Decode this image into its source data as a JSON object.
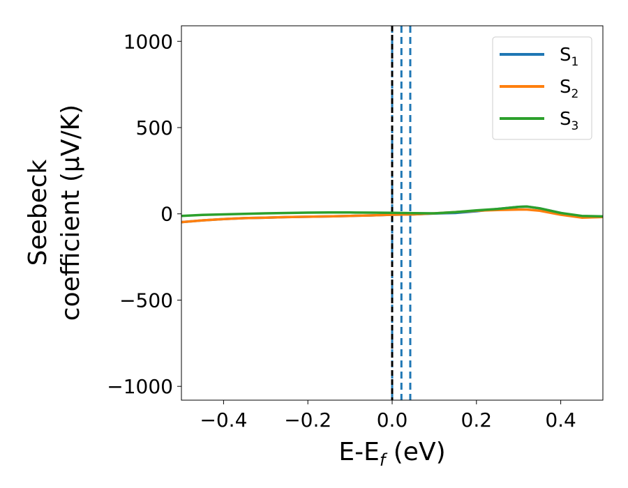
{
  "chart_data": {
    "type": "line",
    "title": "",
    "xlabel": {
      "main": "E-E",
      "subscript": "f",
      "unit": " (eV)"
    },
    "ylabel": {
      "line1": "Seebeck",
      "line2": "coefficient  (μV/K)"
    },
    "xlim": [
      -0.5,
      0.5
    ],
    "ylim": [
      -1080,
      1090
    ],
    "xticks": [
      -0.4,
      -0.2,
      0.0,
      0.2,
      0.4
    ],
    "xtick_labels": [
      "−0.4",
      "−0.2",
      "0.0",
      "0.2",
      "0.4"
    ],
    "yticks": [
      -1000,
      -500,
      0,
      500,
      1000
    ],
    "ytick_labels": [
      "−1000",
      "−500",
      "0",
      "500",
      "1000"
    ],
    "series": [
      {
        "name": "S",
        "sub": "1",
        "color": "#1f77b4",
        "x": [
          -0.5,
          -0.45,
          -0.4,
          -0.35,
          -0.3,
          -0.25,
          -0.2,
          -0.15,
          -0.1,
          -0.05,
          0.0,
          0.05,
          0.1,
          0.15,
          0.2,
          0.25,
          0.3,
          0.32,
          0.35,
          0.4,
          0.45,
          0.5
        ],
        "y": [
          -48,
          -38,
          -30,
          -25,
          -22,
          -19,
          -17,
          -15,
          -12,
          -9,
          -5,
          -3,
          2,
          5,
          15,
          28,
          40,
          42,
          32,
          5,
          -20,
          -18
        ]
      },
      {
        "name": "S",
        "sub": "2",
        "color": "#ff7f0e",
        "x": [
          -0.5,
          -0.45,
          -0.4,
          -0.35,
          -0.3,
          -0.25,
          -0.2,
          -0.15,
          -0.1,
          -0.05,
          0.0,
          0.05,
          0.1,
          0.15,
          0.2,
          0.25,
          0.3,
          0.32,
          0.35,
          0.4,
          0.45,
          0.5
        ],
        "y": [
          -48,
          -38,
          -30,
          -25,
          -22,
          -19,
          -17,
          -15,
          -12,
          -9,
          -5,
          -3,
          3,
          10,
          18,
          22,
          25,
          25,
          18,
          -5,
          -22,
          -18
        ]
      },
      {
        "name": "S",
        "sub": "3",
        "color": "#2ca02c",
        "x": [
          -0.5,
          -0.45,
          -0.4,
          -0.35,
          -0.3,
          -0.25,
          -0.2,
          -0.15,
          -0.1,
          -0.05,
          0.0,
          0.05,
          0.1,
          0.15,
          0.2,
          0.25,
          0.3,
          0.32,
          0.35,
          0.4,
          0.45,
          0.5
        ],
        "y": [
          -12,
          -6,
          -3,
          0,
          3,
          5,
          7,
          8,
          8,
          7,
          6,
          4,
          3,
          10,
          20,
          28,
          40,
          42,
          32,
          5,
          -12,
          -15
        ]
      }
    ],
    "vlines": [
      {
        "x": 0.0,
        "color": "#1f77b4",
        "style": "dashed"
      },
      {
        "x": 0.022,
        "color": "#1f77b4",
        "style": "dashed"
      },
      {
        "x": 0.043,
        "color": "#1f77b4",
        "style": "dashed"
      },
      {
        "x": 0.0,
        "color": "#000000",
        "style": "dashed"
      }
    ],
    "legend_position": "top-right",
    "grid": false
  }
}
